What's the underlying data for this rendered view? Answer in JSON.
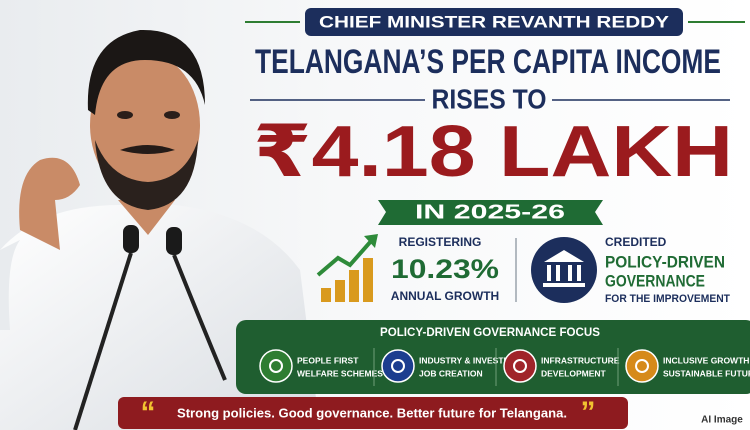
{
  "header": {
    "title": "CHIEF MINISTER REVANTH REDDY"
  },
  "headline": {
    "line1": "TELANGANA’S PER CAPITA INCOME",
    "line2": "RISES TO",
    "amount": "₹4.18 LAKH",
    "period": "IN 2025-26"
  },
  "stats": [
    {
      "label": "REGISTERING",
      "value": "10.23%",
      "caption": "ANNUAL GROWTH"
    },
    {
      "label": "CREDITED",
      "value_lines": [
        "POLICY-DRIVEN",
        "GOVERNANCE"
      ],
      "caption": "FOR THE IMPROVEMENT"
    }
  ],
  "focus": {
    "title": "POLICY-DRIVEN GOVERNANCE FOCUS",
    "items": [
      {
        "line1": "PEOPLE FIRST",
        "line2": "WELFARE SCHEMES"
      },
      {
        "line1": "INDUSTRY & INVESTMENT",
        "line2": "JOB CREATION"
      },
      {
        "line1": "INFRASTRUCTURE",
        "line2": "DEVELOPMENT"
      },
      {
        "line1": "INCLUSIVE GROWTH",
        "line2": "SUSTAINABLE FUTURE"
      }
    ]
  },
  "quote": {
    "open": "“",
    "text": "Strong policies. Good governance. Better future for Telangana.",
    "close": "”"
  },
  "watermark": "AI Image"
}
